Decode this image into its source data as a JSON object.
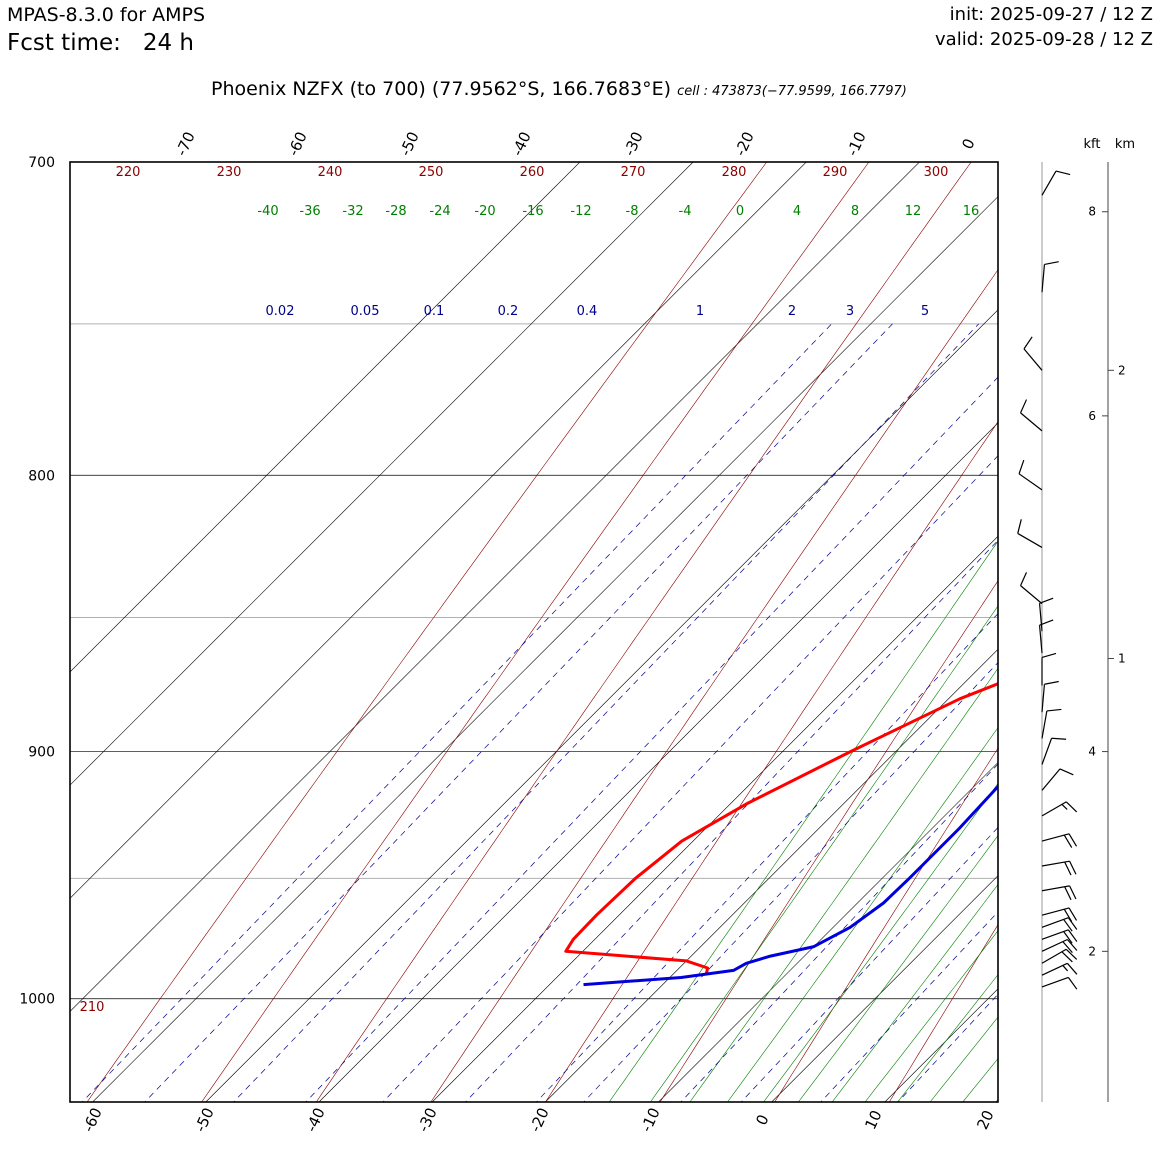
{
  "header": {
    "model": "MPAS-8.3.0 for AMPS",
    "fcst_label": "Fcst time:",
    "fcst_value": "24 h",
    "init": "init: 2025-09-27 / 12 Z",
    "valid": "valid: 2025-09-28 / 12 Z",
    "station": "Phoenix NZFX (to 700)  (77.9562°S, 166.7683°E)",
    "cell": "cell : 473873(−77.9599, 166.7797)"
  },
  "colors": {
    "temperature": "#ff0000",
    "dewpoint": "#0000dd",
    "dry_adiabat": "#8b0000",
    "moist_adiabat": "#008000",
    "mixing_ratio": "#00008b",
    "isotherm": "#000000"
  },
  "chart_data": {
    "type": "skew-t",
    "pressure_range": [
      1045,
      700
    ],
    "temperature_range_bottom": [
      -62,
      20
    ],
    "isobars": [
      700,
      800,
      900,
      1000
    ],
    "minor_isobars": [
      750,
      850,
      950
    ],
    "isotherms": [
      -100,
      -90,
      -80,
      -70,
      -60,
      -50,
      -40,
      -30,
      -20,
      -10,
      0,
      10,
      20,
      30
    ],
    "top_temp_labels": [
      "-70",
      "-60",
      "-50",
      "-40",
      "-30",
      "-20",
      "-10",
      "0"
    ],
    "bottom_temp_labels": [
      "-60",
      "-50",
      "-40",
      "-30",
      "-20",
      "-10",
      "0",
      "10",
      "20"
    ],
    "dry_adiabats_theta_K": [
      210,
      220,
      230,
      240,
      250,
      260,
      270,
      280,
      290,
      300,
      310
    ],
    "moist_adiabat_labels": [
      -40,
      -36,
      -32,
      -28,
      -24,
      -20,
      -16,
      -12,
      -8,
      -4,
      0,
      4,
      8,
      12,
      16
    ],
    "mixing_ratio_labels": [
      "0.02",
      "0.05",
      "0.1",
      "0.2",
      "0.4",
      "1",
      "2",
      "3",
      "5"
    ],
    "temperature_profile": [
      {
        "p": 990,
        "t": -17.0
      },
      {
        "p": 987,
        "t": -17.5
      },
      {
        "p": 984,
        "t": -20.0
      },
      {
        "p": 980,
        "t": -31.5
      },
      {
        "p": 975,
        "t": -31.9
      },
      {
        "p": 965,
        "t": -32.0
      },
      {
        "p": 950,
        "t": -31.8
      },
      {
        "p": 935,
        "t": -31.0
      },
      {
        "p": 920,
        "t": -28.5
      },
      {
        "p": 900,
        "t": -24.0
      },
      {
        "p": 880,
        "t": -19.0
      },
      {
        "p": 865,
        "t": -13.5
      },
      {
        "p": 850,
        "t": -9.5
      },
      {
        "p": 835,
        "t": -6.8
      },
      {
        "p": 800,
        "t": -4.8
      },
      {
        "p": 755,
        "t": -6.5
      },
      {
        "p": 735,
        "t": -12.0
      },
      {
        "p": 705,
        "t": -18.0
      },
      {
        "p": 700,
        "t": -17.8
      }
    ],
    "dewpoint_profile": [
      {
        "p": 994,
        "t": -27.0
      },
      {
        "p": 991,
        "t": -19.0
      },
      {
        "p": 988,
        "t": -15.0
      },
      {
        "p": 985,
        "t": -14.5
      },
      {
        "p": 982,
        "t": -13.0
      },
      {
        "p": 978,
        "t": -10.0
      },
      {
        "p": 970,
        "t": -8.5
      },
      {
        "p": 960,
        "t": -7.7
      },
      {
        "p": 950,
        "t": -7.6
      },
      {
        "p": 930,
        "t": -7.6
      },
      {
        "p": 900,
        "t": -8.1
      },
      {
        "p": 880,
        "t": -7.6
      },
      {
        "p": 865,
        "t": -6.8
      },
      {
        "p": 849,
        "t": -4.8
      },
      {
        "p": 835,
        "t": -5.0
      },
      {
        "p": 800,
        "t": -5.0
      },
      {
        "p": 760,
        "t": -3.8
      },
      {
        "p": 735,
        "t": -1.5
      },
      {
        "p": 710,
        "t": 0.0
      },
      {
        "p": 700,
        "t": 0.5
      }
    ],
    "wind_profile": [
      {
        "p": 995,
        "dir": 70,
        "spd": 10
      },
      {
        "p": 990,
        "dir": 65,
        "spd": 15
      },
      {
        "p": 985,
        "dir": 60,
        "spd": 20
      },
      {
        "p": 980,
        "dir": 65,
        "spd": 20
      },
      {
        "p": 975,
        "dir": 70,
        "spd": 20
      },
      {
        "p": 970,
        "dir": 70,
        "spd": 20
      },
      {
        "p": 965,
        "dir": 75,
        "spd": 20
      },
      {
        "p": 955,
        "dir": 80,
        "spd": 20
      },
      {
        "p": 945,
        "dir": 80,
        "spd": 20
      },
      {
        "p": 935,
        "dir": 75,
        "spd": 20
      },
      {
        "p": 925,
        "dir": 60,
        "spd": 15
      },
      {
        "p": 915,
        "dir": 40,
        "spd": 10
      },
      {
        "p": 905,
        "dir": 20,
        "spd": 10
      },
      {
        "p": 895,
        "dir": 10,
        "spd": 10
      },
      {
        "p": 885,
        "dir": 5,
        "spd": 10
      },
      {
        "p": 875,
        "dir": 0,
        "spd": 10
      },
      {
        "p": 863,
        "dir": 355,
        "spd": 10
      },
      {
        "p": 855,
        "dir": 355,
        "spd": 10
      },
      {
        "p": 845,
        "dir": 310,
        "spd": 10
      },
      {
        "p": 825,
        "dir": 300,
        "spd": 10
      },
      {
        "p": 805,
        "dir": 305,
        "spd": 10
      },
      {
        "p": 785,
        "dir": 310,
        "spd": 10
      },
      {
        "p": 765,
        "dir": 320,
        "spd": 10
      },
      {
        "p": 740,
        "dir": 5,
        "spd": 10
      },
      {
        "p": 710,
        "dir": 30,
        "spd": 10
      }
    ],
    "height_kft": [
      {
        "p": 1007,
        "label": "2"
      },
      {
        "p": 951,
        "label": "4"
      },
      {
        "p": 897,
        "label": "6"
      },
      {
        "p": 846,
        "label": "8"
      }
    ],
    "height_km": [
      {
        "p": 911,
        "label": "1"
      },
      {
        "p": 800,
        "label": "2"
      }
    ],
    "height_axis_titles": {
      "kft": "kft",
      "km": "km"
    },
    "height_axis_pressures": {
      "kft": [
        955,
        895,
        835,
        780
      ],
      "km": [
        895,
        845
      ]
    }
  }
}
